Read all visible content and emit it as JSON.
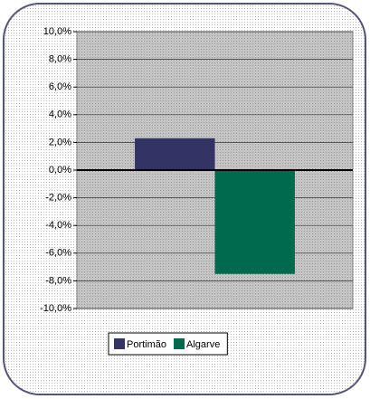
{
  "chart_data": {
    "type": "bar",
    "categories": [
      null
    ],
    "series": [
      {
        "name": "Portimão",
        "color": "#333366",
        "values": [
          2.3
        ]
      },
      {
        "name": "Algarve",
        "color": "#006a4e",
        "values": [
          -7.5
        ]
      }
    ],
    "ylim": [
      -10,
      10
    ],
    "yticks": [
      {
        "value": -10,
        "label": "-10,0%"
      },
      {
        "value": -8,
        "label": "-8,0%"
      },
      {
        "value": -6,
        "label": "-6,0%"
      },
      {
        "value": -4,
        "label": "-4,0%"
      },
      {
        "value": -2,
        "label": "-2,0%"
      },
      {
        "value": 0,
        "label": "0,0%"
      },
      {
        "value": 2,
        "label": "2,0%"
      },
      {
        "value": 4,
        "label": "4,0%"
      },
      {
        "value": 6,
        "label": "6,0%"
      },
      {
        "value": 8,
        "label": "8,0%"
      },
      {
        "value": 10,
        "label": "10,0%"
      }
    ],
    "grid": true,
    "legend": "bottom"
  }
}
